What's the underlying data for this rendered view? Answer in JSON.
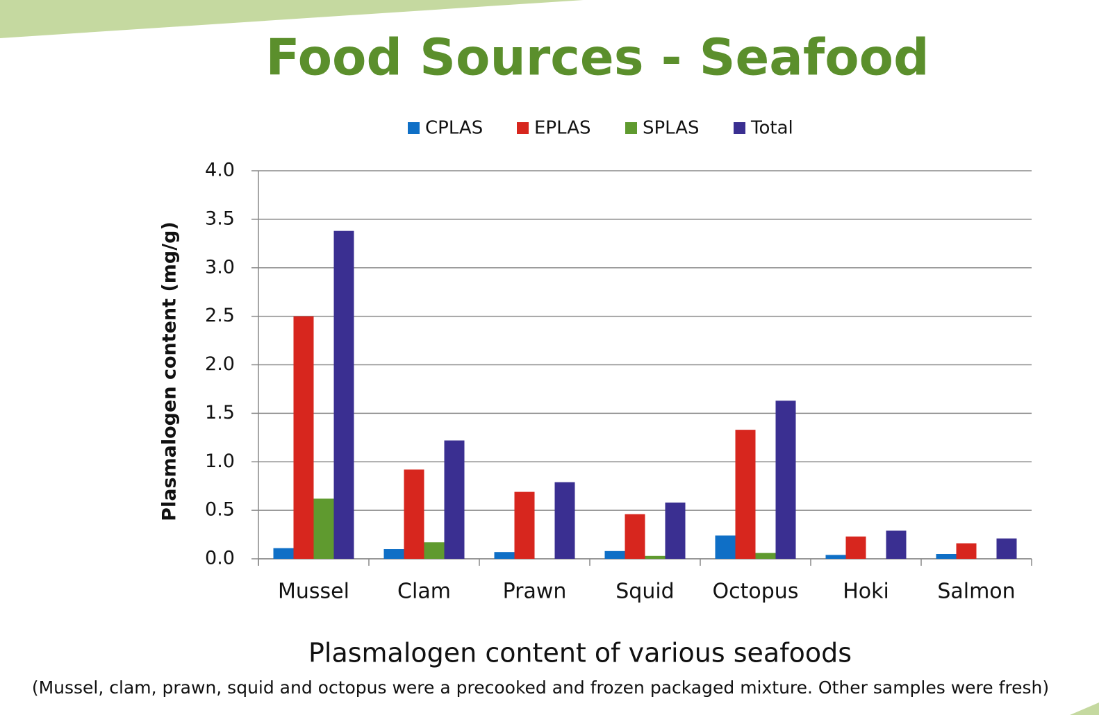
{
  "chart_data": {
    "type": "bar",
    "title": "Food Sources - Seafood",
    "y_label": "Plasmalogen content (mg/g)",
    "x_label": "Plasmalogen content of various seafoods",
    "note": "(Mussel, clam, prawn, squid and octopus were a precooked and frozen packaged mixture.  Other samples were fresh)",
    "categories": [
      "Mussel",
      "Clam",
      "Prawn",
      "Squid",
      "Octopus",
      "Hoki",
      "Salmon"
    ],
    "series": [
      {
        "name": "CPLAS",
        "color": "#0f6fc6",
        "values": [
          0.11,
          0.1,
          0.07,
          0.08,
          0.24,
          0.04,
          0.05
        ]
      },
      {
        "name": "EPLAS",
        "color": "#d7261e",
        "values": [
          2.5,
          0.92,
          0.69,
          0.46,
          1.33,
          0.23,
          0.16
        ]
      },
      {
        "name": "SPLAS",
        "color": "#5f9a2f",
        "values": [
          0.62,
          0.17,
          0,
          0.03,
          0.06,
          0,
          0
        ]
      },
      {
        "name": "Total",
        "color": "#3a2f91",
        "values": [
          3.38,
          1.22,
          0.79,
          0.58,
          1.63,
          0.29,
          0.21
        ]
      }
    ],
    "ylim": [
      0,
      4
    ],
    "yticks": [
      {
        "value": 0,
        "label": "0.0"
      },
      0.5,
      {
        "value": 1,
        "label": "1.0"
      },
      1.5,
      {
        "value": 2,
        "label": "2.0"
      },
      2.5,
      {
        "value": 3,
        "label": "3.0"
      },
      3.5,
      {
        "value": 4,
        "label": "4.0"
      }
    ],
    "grid": true,
    "legend": "top"
  }
}
